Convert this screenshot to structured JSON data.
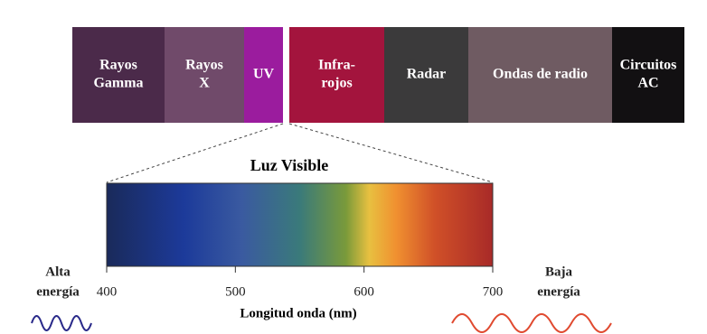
{
  "bands": [
    {
      "lines": [
        "Rayos",
        "Gamma"
      ],
      "color": "#4b2a4a"
    },
    {
      "lines": [
        "Rayos",
        "X"
      ],
      "color": "#704a6a"
    },
    {
      "lines": [
        "UV"
      ],
      "color": "#9b1c9e"
    },
    {
      "lines": [
        "Infra-",
        "rojos"
      ],
      "color": "#a3143d"
    },
    {
      "lines": [
        "Radar"
      ],
      "color": "#3b3a3b"
    },
    {
      "lines": [
        "Ondas de radio"
      ],
      "color": "#6f5b62"
    },
    {
      "lines": [
        "Circuitos",
        "AC"
      ],
      "color": "#121012"
    }
  ],
  "visible": {
    "title": "Luz Visible",
    "ticks": [
      400,
      500,
      600,
      700
    ],
    "axis_label": "Longitud onda (nm)"
  },
  "left_label": [
    "Alta",
    "energía"
  ],
  "right_label": [
    "Baja",
    "energía"
  ]
}
